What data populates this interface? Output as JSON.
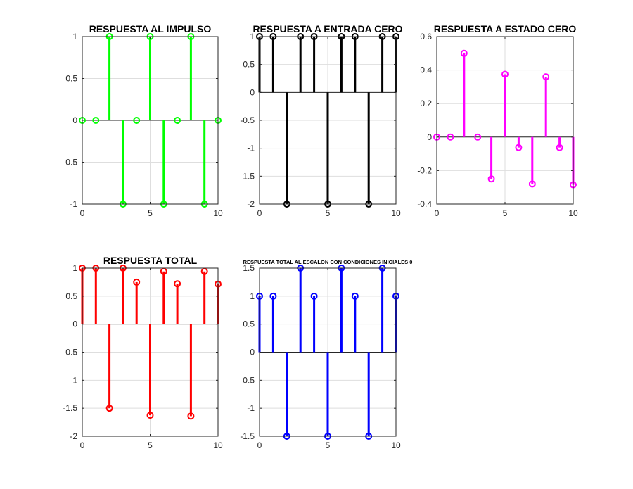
{
  "chart_data": [
    {
      "type": "stem",
      "title": "RESPUESTA AL IMPULSO",
      "color": "#00ff00",
      "x": [
        0,
        1,
        2,
        3,
        4,
        5,
        6,
        7,
        8,
        9,
        10
      ],
      "values": [
        0,
        0,
        1,
        -1,
        0,
        1,
        -1,
        0,
        1,
        -1,
        0
      ],
      "xlim": [
        0,
        10
      ],
      "ylim": [
        -1,
        1
      ],
      "xticks": [
        0,
        5,
        10
      ],
      "xtick_labels": [
        "0",
        "5",
        "10"
      ],
      "yticks": [
        -1,
        -0.5,
        0,
        0.5,
        1
      ],
      "ytick_labels": [
        "-1",
        "-0.5",
        "0",
        "0.5",
        "1"
      ],
      "grid": true
    },
    {
      "type": "stem",
      "title": "RESPUESTA A ENTRADA CERO",
      "color": "#000000",
      "x": [
        0,
        1,
        2,
        3,
        4,
        5,
        6,
        7,
        8,
        9,
        10
      ],
      "values": [
        1,
        1,
        -2,
        1,
        1,
        -2,
        1,
        1,
        -2,
        1,
        1
      ],
      "xlim": [
        0,
        10
      ],
      "ylim": [
        -2,
        1
      ],
      "xticks": [
        0,
        5,
        10
      ],
      "xtick_labels": [
        "0",
        "5",
        "10"
      ],
      "yticks": [
        -2,
        -1.5,
        -1,
        -0.5,
        0,
        0.5,
        1
      ],
      "ytick_labels": [
        "-2",
        "-1.5",
        "-1",
        "-0.5",
        "0",
        "0.5",
        "1"
      ],
      "grid": true
    },
    {
      "type": "stem",
      "title": "RESPUESTA A ESTADO CERO",
      "color": "#ff00ff",
      "x": [
        0,
        1,
        2,
        3,
        4,
        5,
        6,
        7,
        8,
        9,
        10
      ],
      "values": [
        0,
        0,
        0.5,
        0,
        -0.25,
        0.375,
        -0.0625,
        -0.28,
        0.36,
        -0.0625,
        -0.285
      ],
      "xlim": [
        0,
        10
      ],
      "ylim": [
        -0.4,
        0.6
      ],
      "xticks": [
        0,
        5,
        10
      ],
      "xtick_labels": [
        "0",
        "5",
        "10"
      ],
      "yticks": [
        -0.4,
        -0.2,
        0,
        0.2,
        0.4,
        0.6
      ],
      "ytick_labels": [
        "-0.4",
        "-0.2",
        "0",
        "0.2",
        "0.4",
        "0.6"
      ],
      "grid": true
    },
    {
      "type": "stem",
      "title": "RESPUESTA TOTAL",
      "color": "#ff0000",
      "x": [
        0,
        1,
        2,
        3,
        4,
        5,
        6,
        7,
        8,
        9,
        10
      ],
      "values": [
        1,
        1,
        -1.5,
        1,
        0.75,
        -1.625,
        0.94,
        0.72,
        -1.64,
        0.94,
        0.715
      ],
      "xlim": [
        0,
        10
      ],
      "ylim": [
        -2,
        1
      ],
      "xticks": [
        0,
        5,
        10
      ],
      "xtick_labels": [
        "0",
        "5",
        "10"
      ],
      "yticks": [
        -2,
        -1.5,
        -1,
        -0.5,
        0,
        0.5,
        1
      ],
      "ytick_labels": [
        "-2",
        "-1.5",
        "-1",
        "-0.5",
        "0",
        "0.5",
        "1"
      ],
      "grid": true
    },
    {
      "type": "stem",
      "title": "RESPUESTA TOTAL AL ESCALON CON CONDICIONES INICIALES 0",
      "color": "#0000ff",
      "x": [
        0,
        1,
        2,
        3,
        4,
        5,
        6,
        7,
        8,
        9,
        10
      ],
      "values": [
        1,
        1,
        -1.5,
        1.5,
        1,
        -1.5,
        1.5,
        1,
        -1.5,
        1.5,
        1
      ],
      "xlim": [
        0,
        10
      ],
      "ylim": [
        -1.5,
        1.5
      ],
      "xticks": [
        0,
        5,
        10
      ],
      "xtick_labels": [
        "0",
        "5",
        "10"
      ],
      "yticks": [
        -1.5,
        -1,
        -0.5,
        0,
        0.5,
        1,
        1.5
      ],
      "ytick_labels": [
        "-1.5",
        "-1",
        "-0.5",
        "0",
        "0.5",
        "1",
        "1.5"
      ],
      "grid": true
    }
  ]
}
